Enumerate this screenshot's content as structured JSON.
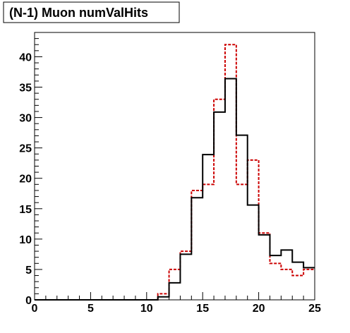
{
  "chart_data": {
    "type": "histogram",
    "title": "(N-1) Muon numValHits",
    "xlabel": "",
    "ylabel": "",
    "xlim": [
      0,
      25
    ],
    "ylim": [
      0,
      44
    ],
    "bin_edges": [
      0,
      1,
      2,
      3,
      4,
      5,
      6,
      7,
      8,
      9,
      10,
      11,
      12,
      13,
      14,
      15,
      16,
      17,
      18,
      19,
      20,
      21,
      22,
      23,
      24,
      25
    ],
    "x_ticks": [
      0,
      5,
      10,
      15,
      20,
      25
    ],
    "y_ticks": [
      0,
      5,
      10,
      15,
      20,
      25,
      30,
      35,
      40
    ],
    "x_tick_labels": [
      "0",
      "5",
      "10",
      "15",
      "20",
      "25"
    ],
    "y_tick_labels": [
      "0",
      "5",
      "10",
      "15",
      "20",
      "25",
      "30",
      "35",
      "40"
    ],
    "grid": false,
    "series": [
      {
        "style": "solid",
        "color": "#000000",
        "values": [
          0,
          0,
          0,
          0,
          0,
          0,
          0,
          0,
          0,
          0,
          0,
          0.5,
          2.8,
          7.5,
          16.8,
          23.9,
          30.9,
          36.4,
          27.1,
          15.6,
          10.7,
          7.3,
          8.2,
          6.2,
          5.3
        ]
      },
      {
        "style": "dashed",
        "color": "#cc0000",
        "values": [
          0,
          0,
          0,
          0,
          0,
          0,
          0,
          0,
          0,
          0,
          0,
          1.0,
          5.0,
          8.0,
          18.0,
          19.0,
          33.0,
          42.0,
          19.0,
          23.0,
          11.0,
          6.0,
          5.0,
          4.0,
          5.0
        ]
      }
    ]
  }
}
